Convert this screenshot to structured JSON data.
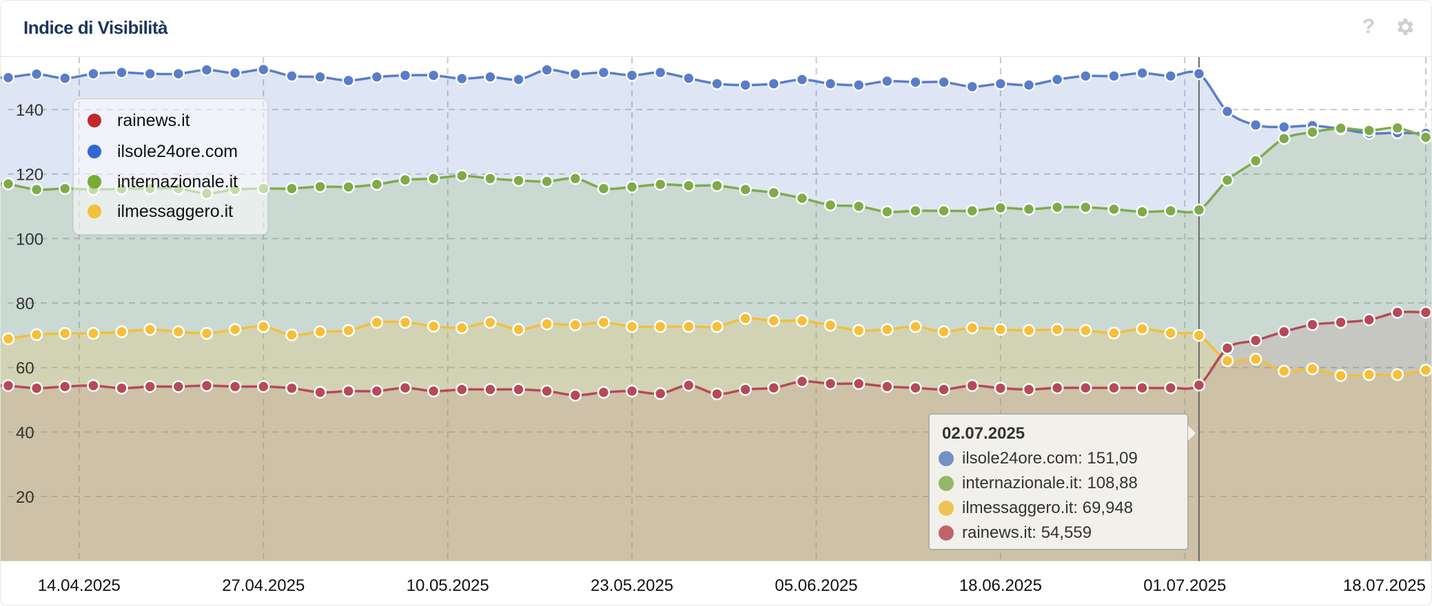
{
  "header": {
    "title": "Indice di Visibilità",
    "help_icon": "?",
    "settings_icon": "gear-icon"
  },
  "chart_data": {
    "type": "area",
    "title": "Indice di Visibilità",
    "ylim": [
      0,
      156.7
    ],
    "yticks": [
      20,
      40,
      60,
      80,
      100,
      120,
      140
    ],
    "grid": true,
    "legend_position": "top-left",
    "xticks": [
      "14.04.2025",
      "27.04.2025",
      "10.05.2025",
      "23.05.2025",
      "05.06.2025",
      "18.06.2025",
      "01.07.2025",
      "18.07.2025"
    ],
    "x_start": "09.04.2025",
    "x_step_days": 2,
    "legend": [
      "rainews.it",
      "ilsole24ore.com",
      "internazionale.it",
      "ilmessaggero.it"
    ],
    "series": [
      {
        "name": "ilsole24ore.com",
        "color": "#5a7dc9",
        "fill": "rgba(91,124,200,0.2)",
        "values": [
          149.9,
          151.0,
          149.7,
          151.1,
          151.5,
          151.1,
          151.1,
          152.3,
          151.3,
          152.4,
          150.4,
          150.1,
          149.0,
          150.1,
          150.6,
          150.6,
          149.6,
          150.1,
          149.3,
          152.3,
          151.0,
          151.5,
          150.6,
          151.5,
          149.7,
          148.0,
          147.6,
          148.0,
          149.3,
          148.0,
          147.6,
          148.8,
          148.5,
          148.5,
          147.1,
          148.0,
          147.6,
          149.3,
          150.4,
          150.4,
          151.3,
          150.4,
          151.09,
          139.4,
          135.2,
          134.6,
          135.0,
          134.0,
          132.6,
          132.8,
          132.6
        ]
      },
      {
        "name": "internazionale.it",
        "color": "#7fab4a",
        "fill": "rgba(127,171,74,0.2)",
        "values": [
          116.95,
          115.2,
          115.5,
          115.2,
          115.4,
          115.5,
          115.5,
          114.0,
          115.2,
          115.5,
          115.5,
          116.1,
          116.0,
          116.8,
          118.2,
          118.6,
          119.5,
          118.6,
          118.0,
          117.7,
          118.6,
          115.5,
          116.0,
          116.8,
          116.4,
          116.4,
          115.2,
          114.2,
          112.5,
          110.4,
          110.0,
          108.3,
          108.6,
          108.6,
          108.6,
          109.5,
          109.1,
          109.7,
          109.7,
          109.1,
          108.3,
          108.6,
          108.88,
          118.1,
          124.1,
          131.0,
          133.0,
          134.2,
          133.5,
          134.3,
          131.4
        ]
      },
      {
        "name": "ilmessaggero.it",
        "color": "#f5bf3a",
        "fill": "rgba(245,191,58,0.2)",
        "values": [
          68.9,
          70.2,
          70.6,
          70.6,
          71.1,
          71.8,
          71.1,
          70.6,
          71.8,
          72.7,
          70.1,
          71.1,
          71.5,
          74.0,
          74.0,
          72.8,
          72.3,
          74.0,
          71.8,
          73.5,
          73.2,
          74.0,
          72.7,
          72.7,
          72.7,
          72.7,
          75.2,
          74.5,
          74.5,
          73.1,
          71.5,
          71.8,
          72.7,
          71.1,
          72.3,
          71.8,
          71.5,
          71.8,
          71.5,
          70.7,
          72.0,
          70.7,
          69.948,
          62.1,
          62.6,
          58.9,
          59.6,
          57.5,
          57.8,
          57.8,
          59.2
        ]
      },
      {
        "name": "rainews.it",
        "color": "#b54a58",
        "fill": "rgba(181,74,86,0.13)",
        "values": [
          54.4,
          53.6,
          54.1,
          54.4,
          53.6,
          54.1,
          54.1,
          54.4,
          54.1,
          54.1,
          53.6,
          52.3,
          52.7,
          52.7,
          53.7,
          52.7,
          53.2,
          53.2,
          53.2,
          52.7,
          51.4,
          52.3,
          52.7,
          51.9,
          54.5,
          51.8,
          53.2,
          53.7,
          55.7,
          55.0,
          55.0,
          54.1,
          53.7,
          53.2,
          54.4,
          53.6,
          53.2,
          53.7,
          53.7,
          53.7,
          53.7,
          53.7,
          54.559,
          66.0,
          68.4,
          71.1,
          73.3,
          74.0,
          74.8,
          77.1,
          77.1
        ]
      }
    ]
  },
  "legend": [
    {
      "label": "rainews.it",
      "color": "#c0282d"
    },
    {
      "label": "ilsole24ore.com",
      "color": "#3468d1"
    },
    {
      "label": "internazionale.it",
      "color": "#7aab32"
    },
    {
      "label": "ilmessaggero.it",
      "color": "#f5be3c"
    }
  ],
  "tooltip": {
    "date": "02.07.2025",
    "rows": [
      {
        "text": "ilsole24ore.com: 151,09",
        "color": "#7790c4"
      },
      {
        "text": "internazionale.it: 108,88",
        "color": "#92b866"
      },
      {
        "text": "ilmessaggero.it: 69,948",
        "color": "#ecc451"
      },
      {
        "text": "rainews.it: 54,559",
        "color": "#c0636b"
      }
    ]
  }
}
